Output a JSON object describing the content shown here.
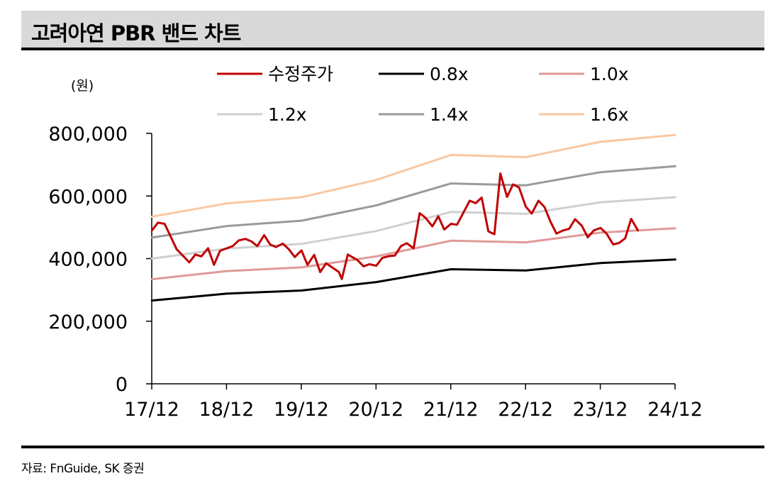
{
  "header": {
    "title": "고려아연 PBR 밴드 차트"
  },
  "footer": {
    "source": "자료: FnGuide, SK 증권"
  },
  "chart_data": {
    "type": "line",
    "unit_label": "(원)",
    "xlabel": "",
    "ylabel": "",
    "ylim": [
      0,
      800000
    ],
    "xlim": [
      2017.917,
      2024.917
    ],
    "y_ticks": [
      0,
      200000,
      400000,
      600000,
      800000
    ],
    "y_tick_labels": [
      "0",
      "200,000",
      "400,000",
      "600,000",
      "800,000"
    ],
    "x_ticks": [
      2017.917,
      2018.917,
      2019.917,
      2020.917,
      2021.917,
      2022.917,
      2023.917,
      2024.917
    ],
    "x_tick_labels": [
      "17/12",
      "18/12",
      "19/12",
      "20/12",
      "21/12",
      "22/12",
      "23/12",
      "24/12"
    ],
    "grid": false,
    "legend_position": "top",
    "series": [
      {
        "name": "수정주가",
        "color": "#c00000",
        "width": 3,
        "points": [
          [
            2017.92,
            490000
          ],
          [
            2018.0,
            515000
          ],
          [
            2018.09,
            511000
          ],
          [
            2018.25,
            430000
          ],
          [
            2018.42,
            388000
          ],
          [
            2018.5,
            413000
          ],
          [
            2018.58,
            407000
          ],
          [
            2018.67,
            433000
          ],
          [
            2018.75,
            380000
          ],
          [
            2018.83,
            425000
          ],
          [
            2019.0,
            440000
          ],
          [
            2019.08,
            458000
          ],
          [
            2019.17,
            463000
          ],
          [
            2019.25,
            455000
          ],
          [
            2019.33,
            440000
          ],
          [
            2019.42,
            475000
          ],
          [
            2019.5,
            445000
          ],
          [
            2019.58,
            437000
          ],
          [
            2019.67,
            448000
          ],
          [
            2019.75,
            430000
          ],
          [
            2019.83,
            405000
          ],
          [
            2019.92,
            426000
          ],
          [
            2020.0,
            380000
          ],
          [
            2020.09,
            412000
          ],
          [
            2020.17,
            357000
          ],
          [
            2020.25,
            385000
          ],
          [
            2020.33,
            372000
          ],
          [
            2020.42,
            357000
          ],
          [
            2020.46,
            335000
          ],
          [
            2020.54,
            413000
          ],
          [
            2020.67,
            395000
          ],
          [
            2020.75,
            375000
          ],
          [
            2020.83,
            382000
          ],
          [
            2020.92,
            377000
          ],
          [
            2021.0,
            402000
          ],
          [
            2021.09,
            408000
          ],
          [
            2021.17,
            410000
          ],
          [
            2021.25,
            440000
          ],
          [
            2021.33,
            449000
          ],
          [
            2021.42,
            433000
          ],
          [
            2021.5,
            545000
          ],
          [
            2021.58,
            530000
          ],
          [
            2021.67,
            503000
          ],
          [
            2021.75,
            535000
          ],
          [
            2021.83,
            493000
          ],
          [
            2021.92,
            511000
          ],
          [
            2022.0,
            508000
          ],
          [
            2022.09,
            549000
          ],
          [
            2022.17,
            585000
          ],
          [
            2022.25,
            577000
          ],
          [
            2022.33,
            595000
          ],
          [
            2022.42,
            487000
          ],
          [
            2022.5,
            478000
          ],
          [
            2022.58,
            672000
          ],
          [
            2022.67,
            597000
          ],
          [
            2022.75,
            637000
          ],
          [
            2022.83,
            627000
          ],
          [
            2022.92,
            566000
          ],
          [
            2023.0,
            544000
          ],
          [
            2023.09,
            585000
          ],
          [
            2023.17,
            565000
          ],
          [
            2023.25,
            518000
          ],
          [
            2023.33,
            480000
          ],
          [
            2023.42,
            490000
          ],
          [
            2023.5,
            495000
          ],
          [
            2023.58,
            526000
          ],
          [
            2023.67,
            505000
          ],
          [
            2023.75,
            468000
          ],
          [
            2023.83,
            490000
          ],
          [
            2023.92,
            498000
          ],
          [
            2024.0,
            480000
          ],
          [
            2024.09,
            445000
          ],
          [
            2024.17,
            450000
          ],
          [
            2024.25,
            465000
          ],
          [
            2024.33,
            527000
          ],
          [
            2024.42,
            490000
          ]
        ]
      },
      {
        "name": "0.8x",
        "color": "#000000",
        "width": 3,
        "points": [
          [
            2017.92,
            266000
          ],
          [
            2018.92,
            288000
          ],
          [
            2019.92,
            298000
          ],
          [
            2020.92,
            325000
          ],
          [
            2021.92,
            366000
          ],
          [
            2022.92,
            362000
          ],
          [
            2023.92,
            386000
          ],
          [
            2024.92,
            397000
          ]
        ]
      },
      {
        "name": "1.0x",
        "color": "#e09a9a",
        "width": 3,
        "points": [
          [
            2017.92,
            334000
          ],
          [
            2018.92,
            360000
          ],
          [
            2019.92,
            372000
          ],
          [
            2020.92,
            407000
          ],
          [
            2021.92,
            457000
          ],
          [
            2022.92,
            452000
          ],
          [
            2023.92,
            483000
          ],
          [
            2024.92,
            497000
          ]
        ]
      },
      {
        "name": "1.2x",
        "color": "#cfcfcf",
        "width": 3,
        "points": [
          [
            2017.92,
            400000
          ],
          [
            2018.92,
            432000
          ],
          [
            2019.92,
            447000
          ],
          [
            2020.92,
            488000
          ],
          [
            2021.92,
            549000
          ],
          [
            2022.92,
            543000
          ],
          [
            2023.92,
            580000
          ],
          [
            2024.92,
            596000
          ]
        ]
      },
      {
        "name": "1.4x",
        "color": "#9a9a9a",
        "width": 3,
        "points": [
          [
            2017.92,
            467000
          ],
          [
            2018.92,
            504000
          ],
          [
            2019.92,
            521000
          ],
          [
            2020.92,
            570000
          ],
          [
            2021.92,
            640000
          ],
          [
            2022.92,
            634000
          ],
          [
            2023.92,
            676000
          ],
          [
            2024.92,
            695000
          ]
        ]
      },
      {
        "name": "1.6x",
        "color": "#f9c8a2",
        "width": 3,
        "points": [
          [
            2017.92,
            534000
          ],
          [
            2018.92,
            576000
          ],
          [
            2019.92,
            596000
          ],
          [
            2020.92,
            651000
          ],
          [
            2021.92,
            731000
          ],
          [
            2022.92,
            724000
          ],
          [
            2023.92,
            773000
          ],
          [
            2024.92,
            795000
          ]
        ]
      }
    ]
  }
}
